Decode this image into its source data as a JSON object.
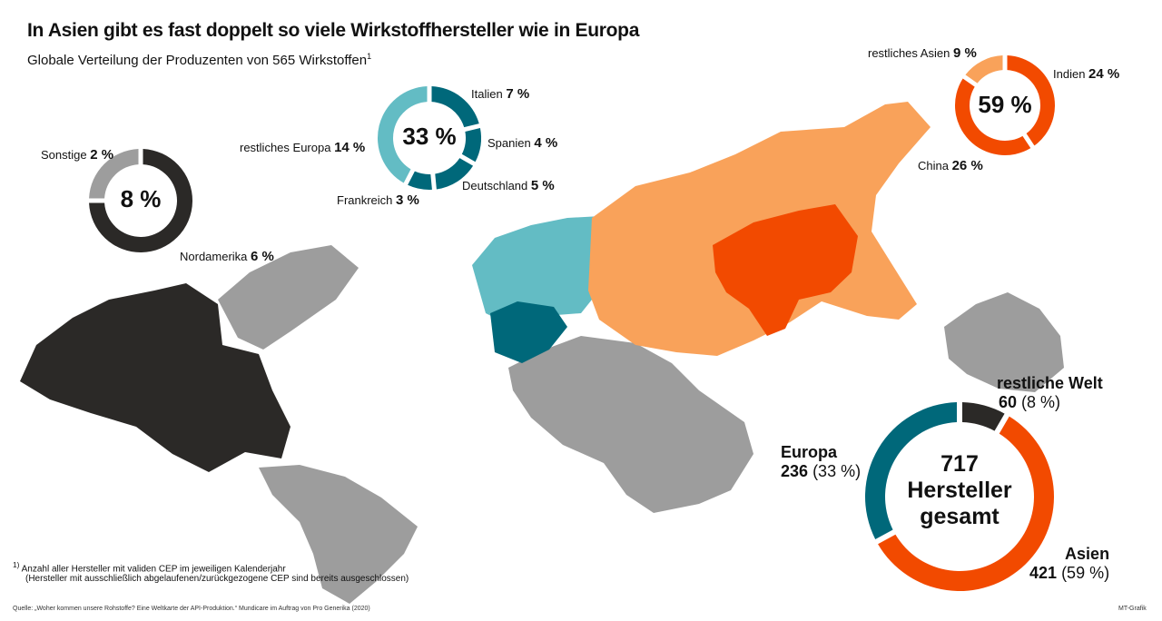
{
  "header": {
    "title": "In Asien gibt es fast doppelt so viele Wirkstoffhersteller wie in Europa",
    "subtitle": "Globale Verteilung der Produzenten von 565 Wirkstoffen",
    "subtitle_footnote_mark": "1"
  },
  "colors": {
    "asia_main": "#f24a00",
    "asia_rest": "#f9a25a",
    "europe_main": "#00687a",
    "europe_rest": "#63bcc4",
    "north_america": "#2b2927",
    "other": "#9d9d9d"
  },
  "chart_data": [
    {
      "type": "pie",
      "variant": "donut",
      "center_label": "33 %",
      "slices": [
        {
          "name": "Italien",
          "value": 7,
          "label": "7 %",
          "color": "#00687a"
        },
        {
          "name": "Spanien",
          "value": 4,
          "label": "4 %",
          "color": "#00687a"
        },
        {
          "name": "Deutschland",
          "value": 5,
          "label": "5 %",
          "color": "#00687a"
        },
        {
          "name": "Frankreich",
          "value": 3,
          "label": "3 %",
          "color": "#00687a"
        },
        {
          "name": "restliches Europa",
          "value": 14,
          "label": "14 %",
          "color": "#63bcc4"
        }
      ]
    },
    {
      "type": "pie",
      "variant": "donut",
      "center_label": "59 %",
      "slices": [
        {
          "name": "Indien",
          "value": 24,
          "label": "24 %",
          "color": "#f24a00"
        },
        {
          "name": "China",
          "value": 26,
          "label": "26 %",
          "color": "#f24a00"
        },
        {
          "name": "restliches Asien",
          "value": 9,
          "label": "9 %",
          "color": "#f9a25a"
        }
      ]
    },
    {
      "type": "pie",
      "variant": "donut",
      "center_label": "8 %",
      "slices": [
        {
          "name": "Nordamerika",
          "value": 6,
          "label": "6 %",
          "color": "#2b2927"
        },
        {
          "name": "Sonstige",
          "value": 2,
          "label": "2 %",
          "color": "#9d9d9d"
        }
      ]
    },
    {
      "type": "pie",
      "variant": "donut",
      "center_label": [
        "717",
        "Hersteller",
        "gesamt"
      ],
      "slices": [
        {
          "name": "restliche Welt",
          "value": 60,
          "label": "60",
          "pct": "(8 %)",
          "color": "#2b2927"
        },
        {
          "name": "Asien",
          "value": 421,
          "label": "421",
          "pct": "(59 %)",
          "color": "#f24a00"
        },
        {
          "name": "Europa",
          "value": 236,
          "label": "236",
          "pct": "(33 %)",
          "color": "#00687a"
        }
      ]
    }
  ],
  "footnote": {
    "mark": "1)",
    "line1": "Anzahl aller Hersteller mit validen CEP im jeweiligen Kalenderjahr",
    "line2": "(Hersteller mit ausschließlich abgelaufenen/zurückgezogene CEP sind bereits ausgeschlossen)"
  },
  "source": "Quelle: „Woher kommen unsere Rohstoffe? Eine Weltkarte der API-Produktion.“ Mundicare im Auftrag von Pro Generika (2020)",
  "credit": "MT-Grafik"
}
